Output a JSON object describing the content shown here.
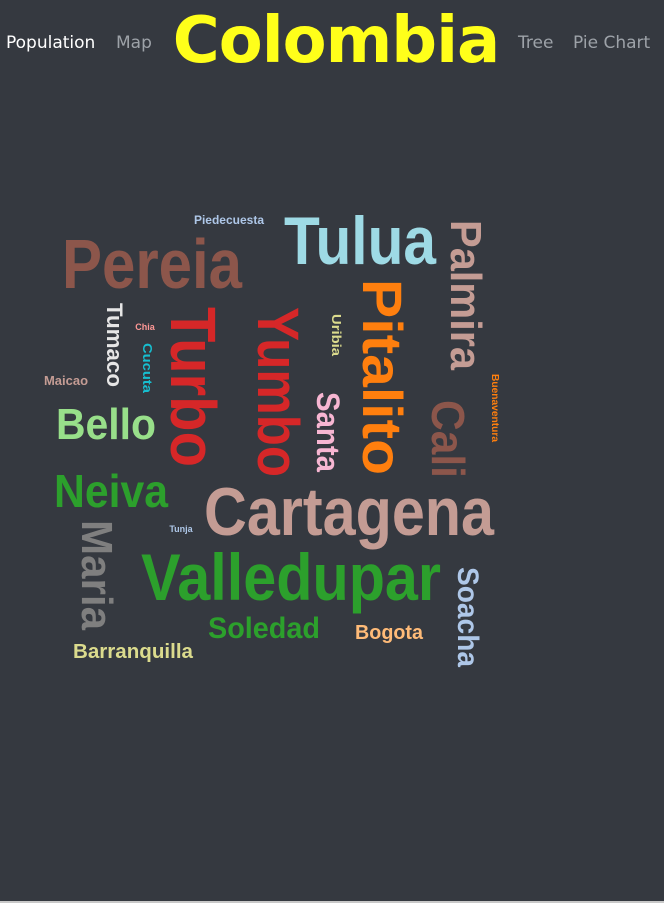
{
  "nav": {
    "population": "Population",
    "map": "Map",
    "brand": "Colombia",
    "tree": "Tree",
    "pie_chart": "Pie Chart"
  },
  "colors": {
    "background": "#353940",
    "brand": "#ffff1a",
    "nav_active": "#ffffff",
    "nav_inactive": "#9da2a8"
  },
  "word_cloud": [
    {
      "text": "Piedecuesta",
      "color": "#aec7e8"
    },
    {
      "text": "Tulua",
      "color": "#9edae5"
    },
    {
      "text": "Pereia",
      "color": "#8c564b"
    },
    {
      "text": "Palmira",
      "color": "#c49c94"
    },
    {
      "text": "Tumaco",
      "color": "#e6e6e6"
    },
    {
      "text": "Chia",
      "color": "#ff9896"
    },
    {
      "text": "Cucuta",
      "color": "#17becf"
    },
    {
      "text": "Turbo",
      "color": "#d62728"
    },
    {
      "text": "Yumbo",
      "color": "#d62728"
    },
    {
      "text": "Uribia",
      "color": "#dbdb8d"
    },
    {
      "text": "Pitalito",
      "color": "#ff7f0e"
    },
    {
      "text": "Maicao",
      "color": "#c49c94"
    },
    {
      "text": "Bello",
      "color": "#98df8a"
    },
    {
      "text": "Santa",
      "color": "#f7b6d2"
    },
    {
      "text": "Cali",
      "color": "#8c564b"
    },
    {
      "text": "Buenaventura",
      "color": "#ff7f0e"
    },
    {
      "text": "Neiva",
      "color": "#2ca02c"
    },
    {
      "text": "Cartagena",
      "color": "#c49c94"
    },
    {
      "text": "Tunja",
      "color": "#aec7e8"
    },
    {
      "text": "Maria",
      "color": "#7f7f7f"
    },
    {
      "text": "Valledupar",
      "color": "#2ca02c"
    },
    {
      "text": "Soacha",
      "color": "#aec7e8"
    },
    {
      "text": "Soledad",
      "color": "#2ca02c"
    },
    {
      "text": "Bogota",
      "color": "#ffbb78"
    },
    {
      "text": "Barranquilla",
      "color": "#dbdb8d"
    }
  ]
}
